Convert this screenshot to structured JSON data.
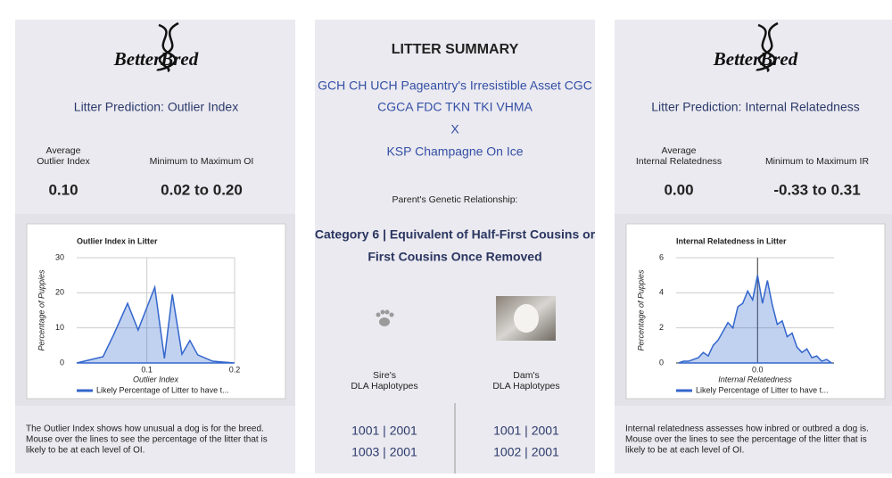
{
  "left_panel": {
    "logo": "BetterBred",
    "heading": "Litter Prediction: Outlier Index",
    "stats": [
      {
        "label": [
          "Average",
          "Outlier Index"
        ],
        "value": "0.10"
      },
      {
        "label": [
          "Minimum to Maximum OI"
        ],
        "value": "0.02 to 0.20"
      }
    ],
    "chart_data": {
      "type": "area",
      "title": "Outlier Index in Litter",
      "x_label": "Outlier Index",
      "y_label": "Percentage of Puppies",
      "x": [
        0.02,
        0.05,
        0.062,
        0.078,
        0.09,
        0.109,
        0.12,
        0.129,
        0.14,
        0.149,
        0.158,
        0.175,
        0.2
      ],
      "series": [
        {
          "name": "Likely Percentage of Litter to have t...",
          "color": "#3366cc",
          "values": [
            0,
            1.8,
            8,
            17,
            9.4,
            21.6,
            1.3,
            19.6,
            2.5,
            6.4,
            2.3,
            0.5,
            0
          ]
        }
      ],
      "xlim": [
        0.02,
        0.2
      ],
      "xticks": [
        0.1,
        0.2
      ],
      "ylim": [
        0,
        30
      ],
      "yticks": [
        0,
        10,
        20,
        30
      ],
      "grid": true
    },
    "description": [
      "The Outlier Index shows how unusual a dog is for the breed.",
      "Mouse over the lines to see the percentage of the litter that is",
      "likely to be at each level of OI."
    ]
  },
  "summary": {
    "title": "LITTER SUMMARY",
    "sire_name": [
      "GCH CH UCH Pageantry's Irresistible Asset CGC",
      "CGCA FDC TKN TKI VHMA"
    ],
    "cross": "X",
    "dam_name": "KSP Champagne On Ice",
    "relationship_label": "Parent's Genetic Relationship:",
    "relationship": [
      "Category 6 | Equivalent of Half-First Cousins or",
      "First Cousins Once Removed"
    ],
    "sire": {
      "label": [
        "Sire's",
        "DLA Haplotypes"
      ],
      "haplotypes": [
        "1001 | 2001",
        "1003 | 2001"
      ]
    },
    "dam": {
      "label": [
        "Dam's",
        "DLA Haplotypes"
      ],
      "haplotypes": [
        "1001 | 2001",
        "1002 | 2001"
      ]
    }
  },
  "right_panel": {
    "logo": "BetterBred",
    "heading": "Litter Prediction: Internal Relatedness",
    "stats": [
      {
        "label": [
          "Average",
          "Internal Relatedness"
        ],
        "value": "0.00"
      },
      {
        "label": [
          "Minimum to Maximum IR"
        ],
        "value": "-0.33 to 0.31"
      }
    ],
    "chart_data": {
      "type": "area",
      "title": "Internal Relatedness in Litter",
      "x_label": "Internal Relatedness",
      "y_label": "Percentage of Puppies",
      "x": [
        -0.32,
        -0.3,
        -0.28,
        -0.26,
        -0.24,
        -0.22,
        -0.2,
        -0.18,
        -0.16,
        -0.14,
        -0.12,
        -0.1,
        -0.08,
        -0.06,
        -0.04,
        -0.02,
        0,
        0.02,
        0.04,
        0.06,
        0.08,
        0.1,
        0.12,
        0.14,
        0.16,
        0.18,
        0.2,
        0.22,
        0.24,
        0.26,
        0.28,
        0.3
      ],
      "series": [
        {
          "name": "Likely Percentage of Litter to have t...",
          "color": "#3366cc",
          "values": [
            0,
            0.1,
            0.1,
            0.2,
            0.3,
            0.6,
            0.4,
            1.0,
            1.3,
            1.8,
            2.3,
            2.0,
            3.2,
            3.4,
            4.1,
            3.6,
            5.0,
            3.4,
            4.7,
            3.3,
            2.2,
            2.4,
            1.5,
            1.7,
            0.9,
            0.6,
            0.8,
            0.3,
            0.4,
            0.1,
            0.2,
            0
          ]
        }
      ],
      "xlim": [
        -0.33,
        0.31
      ],
      "xticks": [
        {
          "value": 0,
          "label": "0.0"
        }
      ],
      "ylim": [
        0,
        6
      ],
      "yticks": [
        0,
        2,
        4,
        6
      ],
      "grid": true
    },
    "description": [
      "Internal relatedness assesses how inbred or outbred a dog is.",
      "Mouse over the lines to see the percentage of the litter that is",
      "likely to be at each level of OI."
    ]
  }
}
